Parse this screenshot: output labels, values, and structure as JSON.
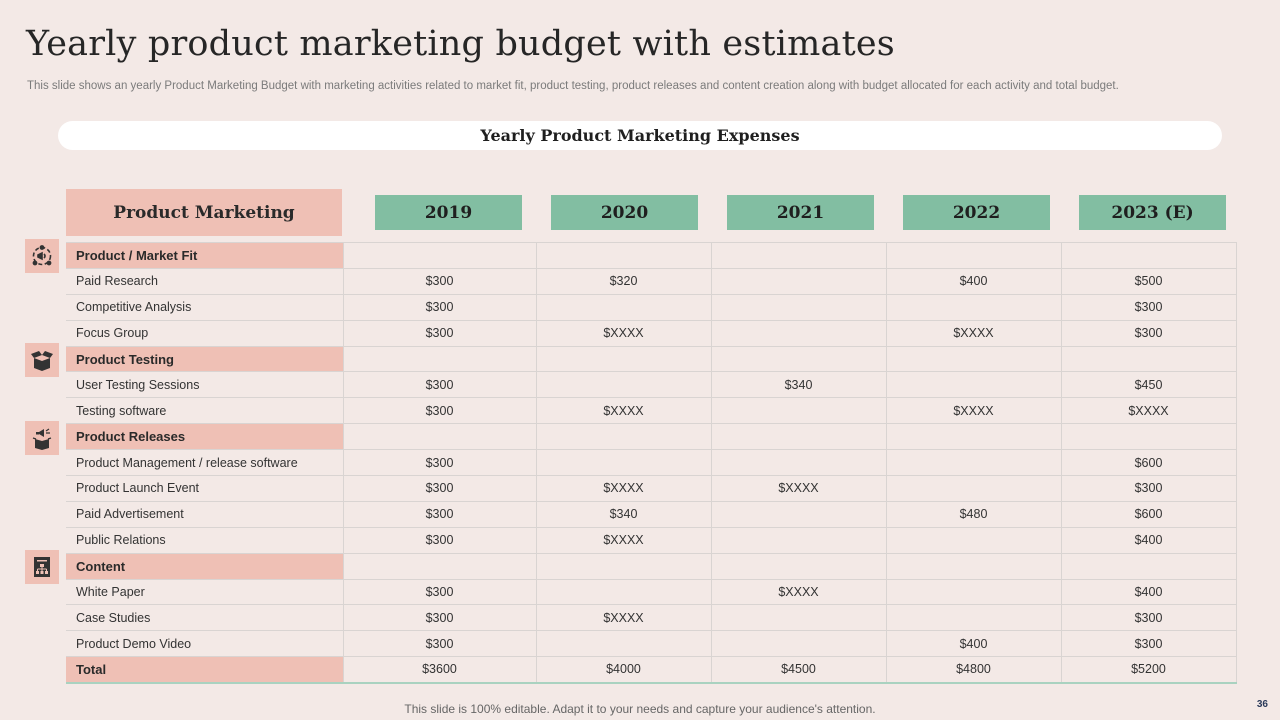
{
  "slide": {
    "title": "Yearly product marketing budget with estimates",
    "subtitle": "This slide shows an yearly Product Marketing Budget with marketing activities related to market fit,  product testing, product releases and content creation along with budget allocated for each activity  and total budget.",
    "banner": "Yearly Product Marketing Expenses",
    "footer": "This slide is 100% editable. Adapt it to your needs and capture your audience's attention.",
    "page_number": "36"
  },
  "table": {
    "header": "Product Marketing",
    "years": [
      "2019",
      "2020",
      "2021",
      "2022",
      "2023 (E)"
    ],
    "rows": [
      {
        "label": "Product / Market Fit",
        "category": true,
        "icon": "target-megaphone-icon",
        "values": [
          "",
          "",
          "",
          "",
          ""
        ]
      },
      {
        "label": "Paid Research",
        "values": [
          "$300",
          "$320",
          "",
          "$400",
          "$500"
        ]
      },
      {
        "label": "Competitive Analysis",
        "values": [
          "$300",
          "",
          "",
          "",
          "$300"
        ]
      },
      {
        "label": "Focus Group",
        "values": [
          "$300",
          "$XXXX",
          "",
          "$XXXX",
          "$300"
        ]
      },
      {
        "label": "Product Testing",
        "category": true,
        "icon": "open-box-icon",
        "values": [
          "",
          "",
          "",
          "",
          ""
        ]
      },
      {
        "label": "User Testing Sessions",
        "values": [
          "$300",
          "",
          "$340",
          "",
          "$450"
        ]
      },
      {
        "label": "Testing software",
        "values": [
          "$300",
          "$XXXX",
          "",
          "$XXXX",
          "$XXXX"
        ]
      },
      {
        "label": "Product Releases",
        "category": true,
        "icon": "box-megaphone-icon",
        "values": [
          "",
          "",
          "",
          "",
          ""
        ]
      },
      {
        "label": "Product Management / release software",
        "values": [
          "$300",
          "",
          "",
          "",
          "$600"
        ]
      },
      {
        "label": "Product Launch Event",
        "values": [
          "$300",
          "$XXXX",
          "$XXXX",
          "",
          "$300"
        ]
      },
      {
        "label": "Paid Advertisement",
        "values": [
          "$300",
          "$340",
          "",
          "$480",
          "$600"
        ]
      },
      {
        "label": "Public Relations",
        "values": [
          "$300",
          "$XXXX",
          "",
          "",
          "$400"
        ]
      },
      {
        "label": "Content",
        "category": true,
        "icon": "content-hierarchy-icon",
        "values": [
          "",
          "",
          "",
          "",
          ""
        ]
      },
      {
        "label": "White Paper",
        "values": [
          "$300",
          "",
          "$XXXX",
          "",
          "$400"
        ]
      },
      {
        "label": "Case Studies",
        "values": [
          "$300",
          "$XXXX",
          "",
          "",
          "$300"
        ]
      },
      {
        "label": "Product Demo Video",
        "values": [
          "$300",
          "",
          "",
          "$400",
          "$300"
        ]
      },
      {
        "label": "Total",
        "total": true,
        "values": [
          "$3600",
          "$4000",
          "$4500",
          "$4800",
          "$5200"
        ]
      }
    ]
  }
}
